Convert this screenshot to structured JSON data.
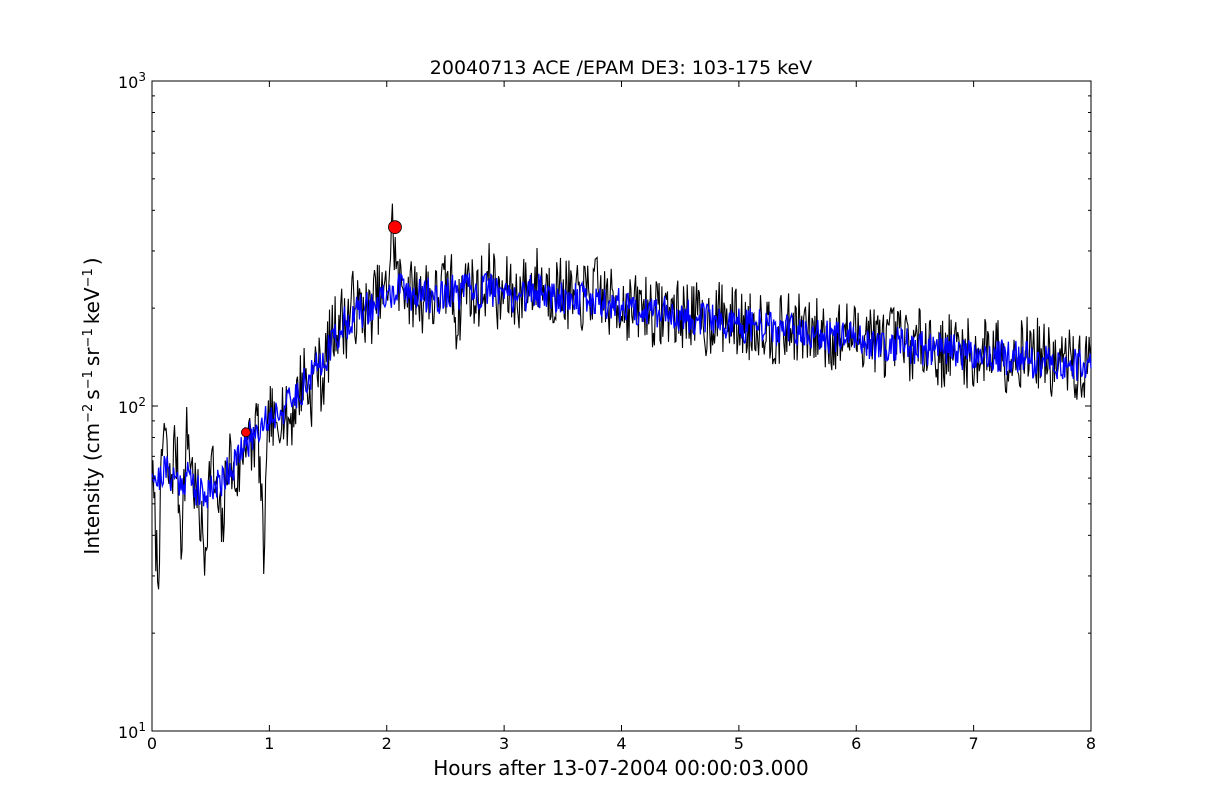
{
  "chart_data": {
    "type": "line",
    "title": "20040713 ACE /EPAM DE3: 103-175 keV",
    "xlabel": "Hours after 13-07-2004 00:00:03.000",
    "ylabel": {
      "prefix": "Intensity (cm",
      "exp1": "−2",
      "unit_s": "s",
      "exp2": "−1",
      "unit_sr": "sr",
      "exp3": "−1",
      "unit_kev": "keV",
      "exp4": "−1",
      "suffix": ")"
    },
    "xlim": [
      0,
      8
    ],
    "ylim": [
      10,
      1000
    ],
    "yscale": "log",
    "grid": false,
    "x_ticks": [
      {
        "value": 0,
        "label": "0"
      },
      {
        "value": 1,
        "label": "1"
      },
      {
        "value": 2,
        "label": "2"
      },
      {
        "value": 3,
        "label": "3"
      },
      {
        "value": 4,
        "label": "4"
      },
      {
        "value": 5,
        "label": "5"
      },
      {
        "value": 6,
        "label": "6"
      },
      {
        "value": 7,
        "label": "7"
      },
      {
        "value": 8,
        "label": "8"
      }
    ],
    "y_ticks": [
      {
        "value": 10,
        "base": "10",
        "exp": "1"
      },
      {
        "value": 100,
        "base": "10",
        "exp": "2"
      },
      {
        "value": 1000,
        "base": "10",
        "exp": "3"
      }
    ],
    "series": [
      {
        "role": "raw",
        "color": "#000000",
        "x": [
          0.0,
          0.05,
          0.1,
          0.15,
          0.2,
          0.25,
          0.3,
          0.35,
          0.4,
          0.45,
          0.5,
          0.55,
          0.6,
          0.65,
          0.7,
          0.75,
          0.8,
          0.85,
          0.9,
          0.95,
          1.0,
          1.05,
          1.1,
          1.15,
          1.2,
          1.25,
          1.3,
          1.35,
          1.4,
          1.45,
          1.5,
          1.55,
          1.6,
          1.65,
          1.7,
          1.75,
          1.8,
          1.85,
          1.9,
          1.95,
          2.0,
          2.05,
          2.1,
          2.15,
          2.2,
          2.25,
          2.3,
          2.35,
          2.4,
          2.45,
          2.5,
          2.55,
          2.6,
          2.65,
          2.7,
          2.75,
          2.8,
          2.85,
          2.9,
          2.95,
          3.0,
          3.1,
          3.2,
          3.3,
          3.4,
          3.5,
          3.6,
          3.7,
          3.8,
          3.9,
          4.0,
          4.1,
          4.2,
          4.3,
          4.4,
          4.5,
          4.6,
          4.7,
          4.8,
          4.9,
          5.0,
          5.1,
          5.2,
          5.3,
          5.4,
          5.5,
          5.6,
          5.7,
          5.8,
          5.9,
          6.0,
          6.1,
          6.2,
          6.3,
          6.4,
          6.5,
          6.6,
          6.7,
          6.8,
          6.9,
          7.0,
          7.1,
          7.2,
          7.3,
          7.4,
          7.5,
          7.6,
          7.7,
          7.8,
          7.9,
          8.0
        ],
        "y": [
          62,
          30,
          90,
          55,
          78,
          40,
          85,
          60,
          48,
          35,
          70,
          52,
          40,
          75,
          58,
          64,
          85,
          72,
          92,
          34,
          98,
          80,
          104,
          88,
          96,
          112,
          128,
          104,
          140,
          118,
          150,
          170,
          190,
          175,
          208,
          195,
          200,
          188,
          215,
          212,
          220,
          360,
          230,
          245,
          218,
          225,
          212,
          235,
          205,
          228,
          230,
          238,
          180,
          230,
          248,
          212,
          230,
          240,
          262,
          198,
          228,
          215,
          235,
          245,
          225,
          230,
          208,
          220,
          228,
          205,
          210,
          196,
          205,
          190,
          200,
          188,
          198,
          172,
          192,
          185,
          180,
          175,
          185,
          168,
          172,
          176,
          165,
          170,
          160,
          168,
          162,
          172,
          155,
          160,
          158,
          150,
          165,
          142,
          152,
          150,
          140,
          148,
          155,
          138,
          146,
          150,
          140,
          132,
          138,
          128,
          136
        ],
        "noise": 0.11,
        "seed": 7
      },
      {
        "role": "smoothed",
        "color": "#0000ff",
        "x": [
          0.0,
          0.05,
          0.1,
          0.15,
          0.2,
          0.25,
          0.3,
          0.35,
          0.4,
          0.45,
          0.5,
          0.55,
          0.6,
          0.65,
          0.7,
          0.75,
          0.8,
          0.85,
          0.9,
          0.95,
          1.0,
          1.05,
          1.1,
          1.15,
          1.2,
          1.25,
          1.3,
          1.35,
          1.4,
          1.45,
          1.5,
          1.55,
          1.6,
          1.65,
          1.7,
          1.75,
          1.8,
          1.85,
          1.9,
          1.95,
          2.0,
          2.05,
          2.1,
          2.15,
          2.2,
          2.25,
          2.3,
          2.35,
          2.4,
          2.45,
          2.5,
          2.55,
          2.6,
          2.65,
          2.7,
          2.75,
          2.8,
          2.85,
          2.9,
          2.95,
          3.0,
          3.1,
          3.2,
          3.3,
          3.4,
          3.5,
          3.6,
          3.7,
          3.8,
          3.9,
          4.0,
          4.1,
          4.2,
          4.3,
          4.4,
          4.5,
          4.6,
          4.7,
          4.8,
          4.9,
          5.0,
          5.1,
          5.2,
          5.3,
          5.4,
          5.5,
          5.6,
          5.7,
          5.8,
          5.9,
          6.0,
          6.1,
          6.2,
          6.3,
          6.4,
          6.5,
          6.6,
          6.7,
          6.8,
          6.9,
          7.0,
          7.1,
          7.2,
          7.3,
          7.4,
          7.5,
          7.6,
          7.7,
          7.8,
          7.9,
          8.0
        ],
        "y": [
          66,
          58,
          64,
          62,
          60,
          58,
          62,
          58,
          54,
          52,
          58,
          56,
          60,
          64,
          66,
          70,
          78,
          80,
          86,
          90,
          92,
          95,
          98,
          100,
          104,
          110,
          118,
          122,
          130,
          138,
          148,
          160,
          172,
          180,
          188,
          194,
          196,
          200,
          205,
          210,
          215,
          222,
          226,
          228,
          222,
          220,
          218,
          220,
          216,
          218,
          222,
          224,
          220,
          225,
          228,
          222,
          224,
          226,
          230,
          222,
          220,
          218,
          222,
          226,
          220,
          218,
          214,
          212,
          210,
          206,
          204,
          200,
          198,
          196,
          194,
          190,
          188,
          184,
          182,
          180,
          178,
          176,
          175,
          172,
          170,
          168,
          166,
          165,
          162,
          160,
          160,
          158,
          156,
          155,
          154,
          152,
          150,
          149,
          148,
          146,
          145,
          144,
          142,
          140,
          140,
          138,
          137,
          136,
          134,
          132,
          132
        ],
        "noise": 0.055,
        "seed": 21
      }
    ],
    "markers": [
      {
        "x": 0.8,
        "y": 83,
        "color": "#ff0000",
        "size": "small"
      },
      {
        "x": 2.07,
        "y": 355,
        "color": "#ff0000",
        "size": "large"
      }
    ]
  }
}
